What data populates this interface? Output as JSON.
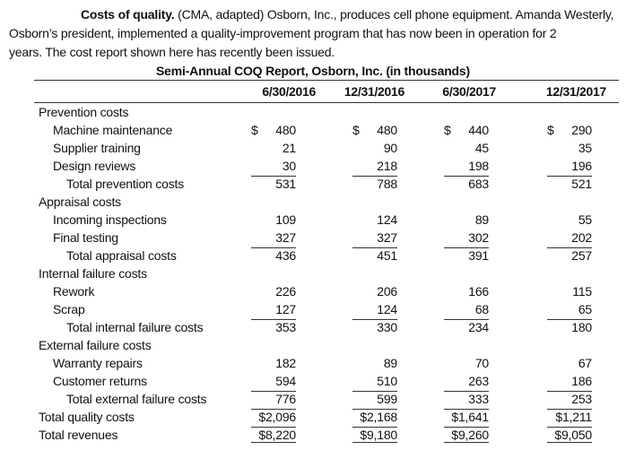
{
  "intro": {
    "lead": "Costs of quality.",
    "text1": " (CMA, adapted) Osborn, Inc., produces cell phone equipment. Amanda Westerly,",
    "text2": "Osborn’s president, implemented a quality-improvement program that has now been in operation for 2",
    "text3": "years. The cost report shown here has recently been issued."
  },
  "report": {
    "title": "Semi-Annual COQ Report, Osborn, Inc. (in thousands)",
    "columns": [
      "6/30/2016",
      "12/31/2016",
      "6/30/2017",
      "12/31/2017"
    ]
  },
  "rows": [
    {
      "label": "Prevention costs",
      "level": 0,
      "values": [
        "",
        "",
        "",
        ""
      ]
    },
    {
      "label": "Machine maintenance",
      "level": 1,
      "values": [
        "480",
        "480",
        "440",
        "290"
      ],
      "dollar": true
    },
    {
      "label": "Supplier training",
      "level": 1,
      "values": [
        "21",
        "90",
        "45",
        "35"
      ]
    },
    {
      "label": "Design reviews",
      "level": 1,
      "values": [
        "30",
        "218",
        "198",
        "196"
      ]
    },
    {
      "label": "Total prevention costs",
      "level": 2,
      "values": [
        "531",
        "788",
        "683",
        "521"
      ],
      "total": true
    },
    {
      "label": "Appraisal costs",
      "level": 0,
      "values": [
        "",
        "",
        "",
        ""
      ]
    },
    {
      "label": "Incoming inspections",
      "level": 1,
      "values": [
        "109",
        "124",
        "89",
        "55"
      ]
    },
    {
      "label": "Final testing",
      "level": 1,
      "values": [
        "327",
        "327",
        "302",
        "202"
      ]
    },
    {
      "label": "Total appraisal costs",
      "level": 2,
      "values": [
        "436",
        "451",
        "391",
        "257"
      ],
      "total": true
    },
    {
      "label": "Internal failure costs",
      "level": 0,
      "values": [
        "",
        "",
        "",
        ""
      ]
    },
    {
      "label": "Rework",
      "level": 1,
      "values": [
        "226",
        "206",
        "166",
        "115"
      ]
    },
    {
      "label": "Scrap",
      "level": 1,
      "values": [
        "127",
        "124",
        "68",
        "65"
      ]
    },
    {
      "label": "Total internal failure costs",
      "level": 2,
      "values": [
        "353",
        "330",
        "234",
        "180"
      ],
      "total": true
    },
    {
      "label": "External failure costs",
      "level": 0,
      "values": [
        "",
        "",
        "",
        ""
      ]
    },
    {
      "label": "Warranty repairs",
      "level": 1,
      "values": [
        "182",
        "89",
        "70",
        "67"
      ]
    },
    {
      "label": "Customer returns",
      "level": 1,
      "values": [
        "594",
        "510",
        "263",
        "186"
      ]
    },
    {
      "label": "Total external failure costs",
      "level": 2,
      "values": [
        "776",
        "599",
        "333",
        "253"
      ],
      "total": true
    },
    {
      "label": "Total quality costs",
      "level": 0,
      "values": [
        "$2,096",
        "$2,168",
        "$1,641",
        "$1,211"
      ],
      "grandtop": true
    },
    {
      "label": "Total revenues",
      "level": 0,
      "values": [
        "$8,220",
        "$9,180",
        "$9,260",
        "$9,050"
      ],
      "grandtop": true
    }
  ]
}
